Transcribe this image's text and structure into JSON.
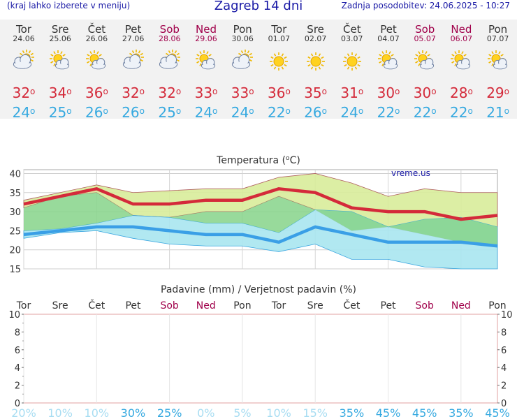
{
  "header": {
    "menu_hint": "(kraj lahko izberete v meniju)",
    "title": "Zagreb 14 dni",
    "updated": "Zadnja posodobitev: 24.06.2025 - 10:27"
  },
  "colors": {
    "title_blue": "#1a1aa6",
    "max_red": "#d42a3a",
    "min_blue": "#35a9e0",
    "weekend": "#a0004a",
    "max_band": "#d8ec9a",
    "min_band": "#a9e6f0",
    "overlap": "#86d48a"
  },
  "days": [
    {
      "name": "Tor",
      "date": "24.06",
      "weekend": false,
      "icon": "partly-cloudy-icon",
      "max": "32",
      "min": "24"
    },
    {
      "name": "Sre",
      "date": "25.06",
      "weekend": false,
      "icon": "sun-cloud-icon",
      "max": "34",
      "min": "25"
    },
    {
      "name": "Čet",
      "date": "26.06",
      "weekend": false,
      "icon": "sun-cloud-icon",
      "max": "36",
      "min": "26"
    },
    {
      "name": "Pet",
      "date": "27.06",
      "weekend": false,
      "icon": "partly-cloudy-icon",
      "max": "32",
      "min": "26"
    },
    {
      "name": "Sob",
      "date": "28.06",
      "weekend": true,
      "icon": "partly-cloudy-icon",
      "max": "32",
      "min": "25"
    },
    {
      "name": "Ned",
      "date": "29.06",
      "weekend": true,
      "icon": "sun-cloud-icon",
      "max": "33",
      "min": "24"
    },
    {
      "name": "Pon",
      "date": "30.06",
      "weekend": false,
      "icon": "partly-cloudy-icon",
      "max": "33",
      "min": "24"
    },
    {
      "name": "Tor",
      "date": "01.07",
      "weekend": false,
      "icon": "sun-icon",
      "max": "36",
      "min": "22"
    },
    {
      "name": "Sre",
      "date": "02.07",
      "weekend": false,
      "icon": "sun-icon",
      "max": "35",
      "min": "26"
    },
    {
      "name": "Čet",
      "date": "03.07",
      "weekend": false,
      "icon": "sun-icon",
      "max": "31",
      "min": "24"
    },
    {
      "name": "Pet",
      "date": "04.07",
      "weekend": false,
      "icon": "sun-cloud-icon",
      "max": "30",
      "min": "22"
    },
    {
      "name": "Sob",
      "date": "05.07",
      "weekend": true,
      "icon": "sun-cloud-icon",
      "max": "30",
      "min": "22"
    },
    {
      "name": "Ned",
      "date": "06.07",
      "weekend": true,
      "icon": "sun-cloud-icon",
      "max": "28",
      "min": "22"
    },
    {
      "name": "Pon",
      "date": "07.07",
      "weekend": false,
      "icon": "sun-cloud-icon",
      "max": "29",
      "min": "21"
    }
  ],
  "chart_data": [
    {
      "type": "line",
      "title": "Temperatura (°C)",
      "title_parts": {
        "before": "Temperatura (",
        "sup": "o",
        "after": "C)"
      },
      "watermark": "vreme.us",
      "ylim": [
        15,
        41
      ],
      "yticks": [
        "15",
        "20",
        "25",
        "30",
        "35",
        "40"
      ],
      "grid": true,
      "series": [
        {
          "name": "max",
          "values": [
            32,
            34,
            36,
            32,
            32,
            33,
            33,
            36,
            35,
            31,
            30,
            30,
            28,
            29
          ]
        },
        {
          "name": "min",
          "values": [
            24,
            25,
            26,
            26,
            25,
            24,
            24,
            22,
            26,
            24,
            22,
            22,
            22,
            21
          ]
        }
      ],
      "bands": {
        "max_upper": [
          33,
          35,
          37,
          35,
          35.5,
          36,
          36,
          39,
          40,
          37.5,
          34,
          36,
          35,
          35
        ],
        "max_lower": [
          31,
          34,
          35,
          29,
          28.5,
          30,
          30,
          34,
          30.5,
          25,
          26,
          24,
          22,
          21
        ],
        "min_upper": [
          25,
          25.5,
          27,
          29,
          28.5,
          27,
          27,
          24.5,
          30.5,
          30,
          26,
          28,
          28.5,
          26
        ],
        "min_lower": [
          23,
          24.5,
          25,
          23,
          21.5,
          21,
          21,
          19.5,
          21.5,
          17.5,
          17.5,
          15.5,
          15,
          15
        ]
      }
    },
    {
      "type": "bar",
      "title": "Padavine (mm) / Verjetnost padavin (%)",
      "categories": [
        "Tor",
        "Sre",
        "Čet",
        "Pet",
        "Sob",
        "Ned",
        "Pon",
        "Tor",
        "Sre",
        "Čet",
        "Pet",
        "Sob",
        "Ned",
        "Pon"
      ],
      "weekend": [
        false,
        false,
        false,
        false,
        true,
        true,
        false,
        false,
        false,
        false,
        false,
        true,
        true,
        false
      ],
      "values": [
        0,
        0,
        0,
        0,
        0,
        0,
        0,
        0,
        0,
        0,
        0,
        0,
        0,
        0
      ],
      "ylim": [
        0,
        10
      ],
      "yticks": [
        "0",
        "2",
        "4",
        "6",
        "8",
        "10"
      ],
      "probability_labels": [
        "20%",
        "10%",
        "10%",
        "30%",
        "25%",
        "0%",
        "5%",
        "10%",
        "15%",
        "35%",
        "45%",
        "45%",
        "35%",
        "45%"
      ],
      "probability": [
        20,
        10,
        10,
        30,
        25,
        0,
        5,
        10,
        15,
        35,
        45,
        45,
        35,
        45
      ]
    }
  ]
}
